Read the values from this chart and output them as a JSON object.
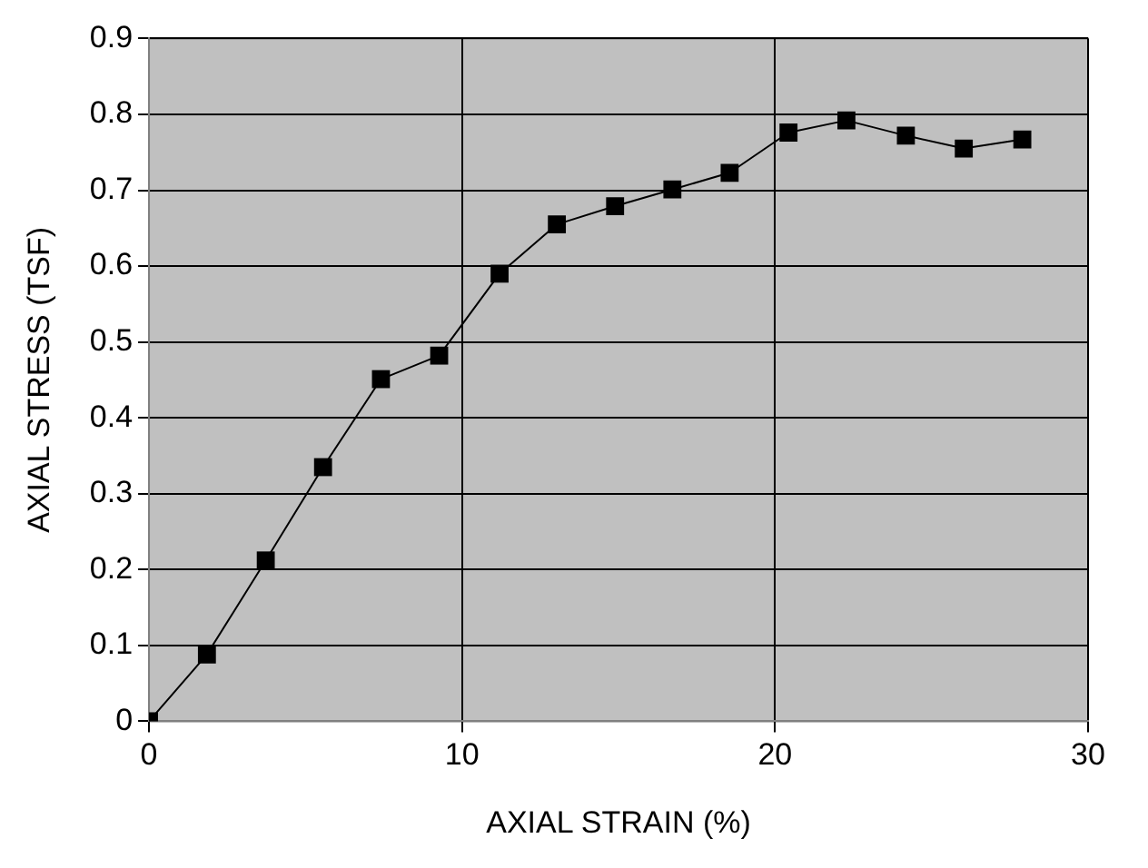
{
  "chart_data": {
    "type": "line",
    "xlabel": "AXIAL STRAIN (%)",
    "ylabel": "AXIAL STRESS (TSF)",
    "x": [
      0,
      1.85,
      3.73,
      5.56,
      7.41,
      9.27,
      11.2,
      13.03,
      14.89,
      16.72,
      18.55,
      20.43,
      22.28,
      24.18,
      26.03,
      27.9
    ],
    "series": [
      {
        "color": "#000000",
        "values": [
          0,
          0.088,
          0.212,
          0.335,
          0.451,
          0.482,
          0.59,
          0.655,
          0.679,
          0.701,
          0.723,
          0.776,
          0.792,
          0.772,
          0.755,
          0.767
        ]
      }
    ],
    "xlim": [
      0,
      30
    ],
    "xticks": [
      0,
      10,
      20,
      30
    ],
    "ylim": [
      0,
      0.9
    ],
    "yticks": [
      0,
      0.1,
      0.2,
      0.3,
      0.4,
      0.5,
      0.6,
      0.7,
      0.8,
      0.9
    ],
    "grid": true,
    "legend": false,
    "marker": "square",
    "line_style": "solid"
  }
}
